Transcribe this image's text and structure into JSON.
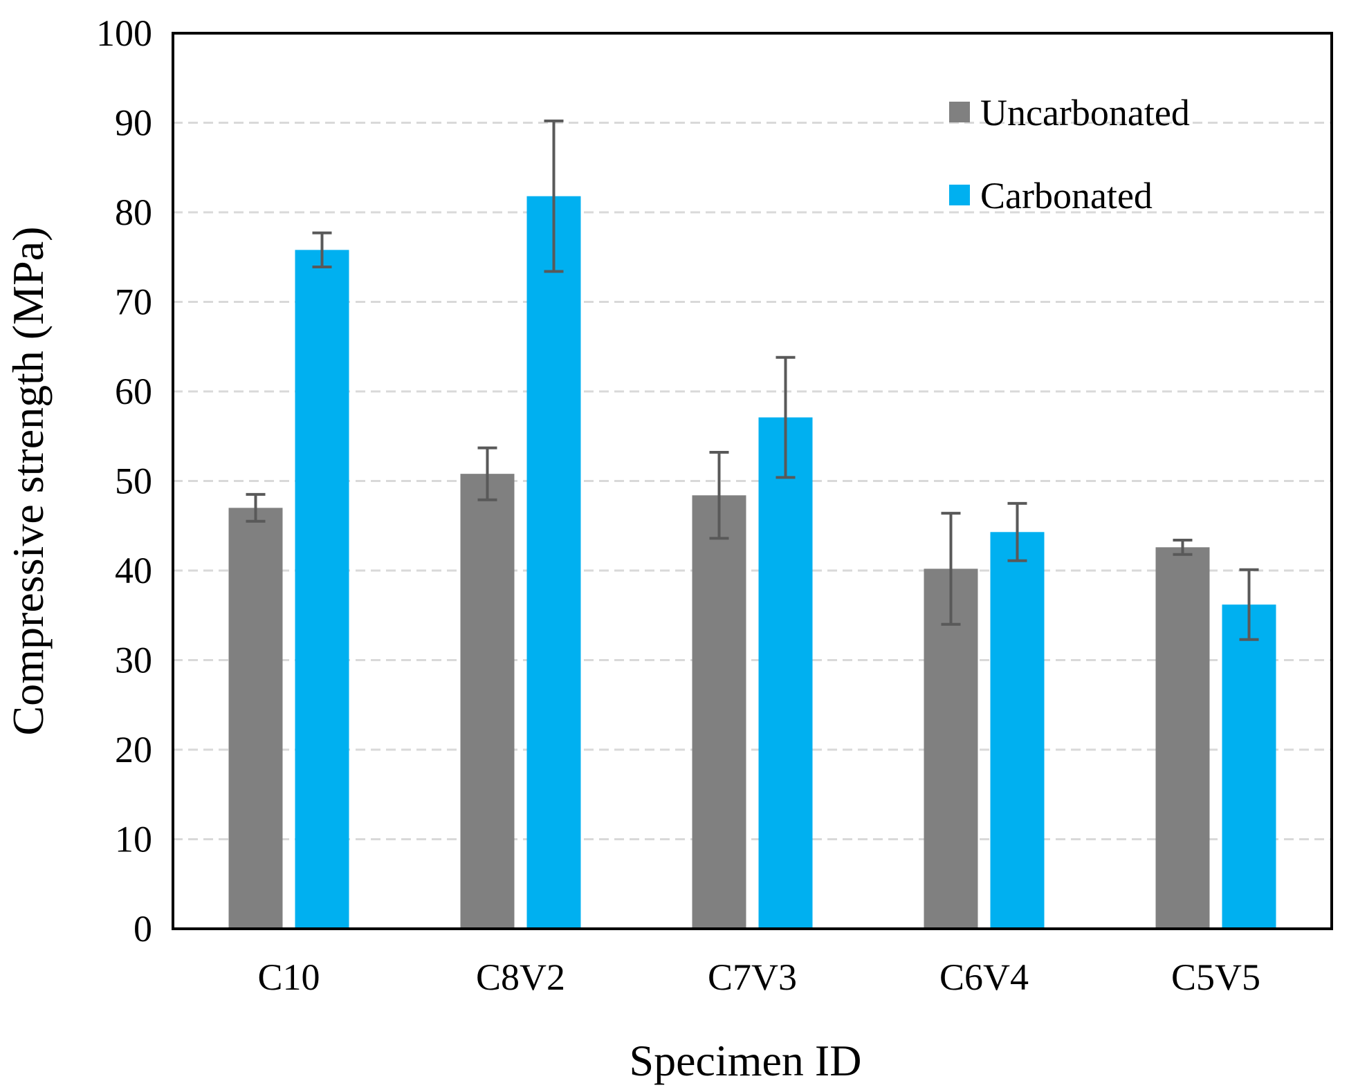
{
  "chart_data": {
    "type": "bar",
    "title": "",
    "xlabel": "Specimen ID",
    "ylabel": "Compressive strength (MPa)",
    "ylim": [
      0,
      100
    ],
    "yticks": [
      0,
      10,
      20,
      30,
      40,
      50,
      60,
      70,
      80,
      90,
      100
    ],
    "grid": true,
    "legend_position": "top-right",
    "categories": [
      "C10",
      "C8V2",
      "C7V3",
      "C6V4",
      "C5V5"
    ],
    "series": [
      {
        "name": "Uncarbonated",
        "color": "#808080",
        "values": [
          47.0,
          50.8,
          48.4,
          40.2,
          42.6
        ],
        "error": [
          1.5,
          2.9,
          4.8,
          6.2,
          0.8
        ]
      },
      {
        "name": "Carbonated",
        "color": "#00B0F0",
        "values": [
          75.8,
          81.8,
          57.1,
          44.3,
          36.2
        ],
        "error": [
          1.9,
          8.4,
          6.7,
          3.2,
          3.9
        ]
      }
    ],
    "error_bar_color": "#595959",
    "grid_color": "#D9D9D9"
  }
}
